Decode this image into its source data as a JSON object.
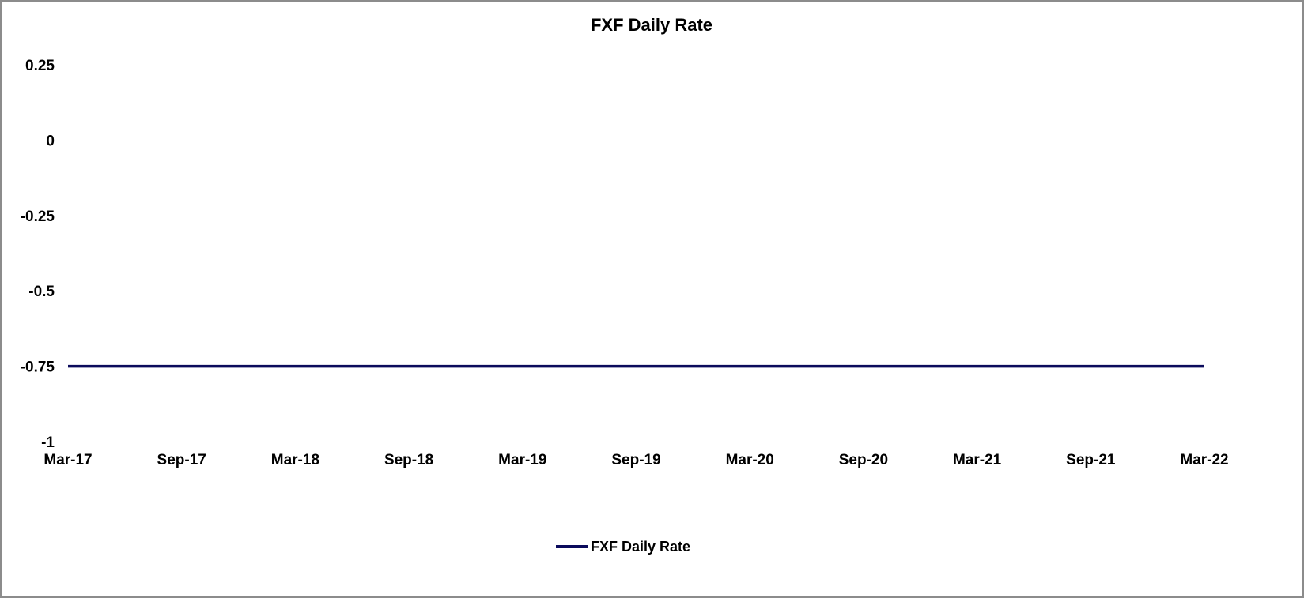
{
  "chart_data": {
    "type": "line",
    "title": "FXF Daily Rate",
    "xlabel": "",
    "ylabel": "",
    "x_ticks": [
      "Mar-17",
      "Sep-17",
      "Mar-18",
      "Sep-18",
      "Mar-19",
      "Sep-19",
      "Mar-20",
      "Sep-20",
      "Mar-21",
      "Sep-21",
      "Mar-22"
    ],
    "y_ticks": [
      "0.25",
      "0",
      "-0.25",
      "-0.5",
      "-0.75",
      "-1"
    ],
    "y_tick_values": [
      0.25,
      0,
      -0.25,
      -0.5,
      -0.75,
      -1
    ],
    "ylim": [
      -1,
      0.25
    ],
    "xlim": [
      "2017-03",
      "2022-03"
    ],
    "grid": false,
    "legend_position": "bottom",
    "series": [
      {
        "name": "FXF Daily Rate",
        "color": "#0b0b5c",
        "x": [
          "2017-03",
          "2017-09",
          "2018-03",
          "2018-09",
          "2019-03",
          "2019-09",
          "2020-03",
          "2020-09",
          "2021-03",
          "2021-09",
          "2022-03"
        ],
        "values": [
          -0.75,
          -0.75,
          -0.75,
          -0.75,
          -0.75,
          -0.75,
          -0.75,
          -0.75,
          -0.75,
          -0.75,
          -0.75
        ]
      }
    ]
  }
}
